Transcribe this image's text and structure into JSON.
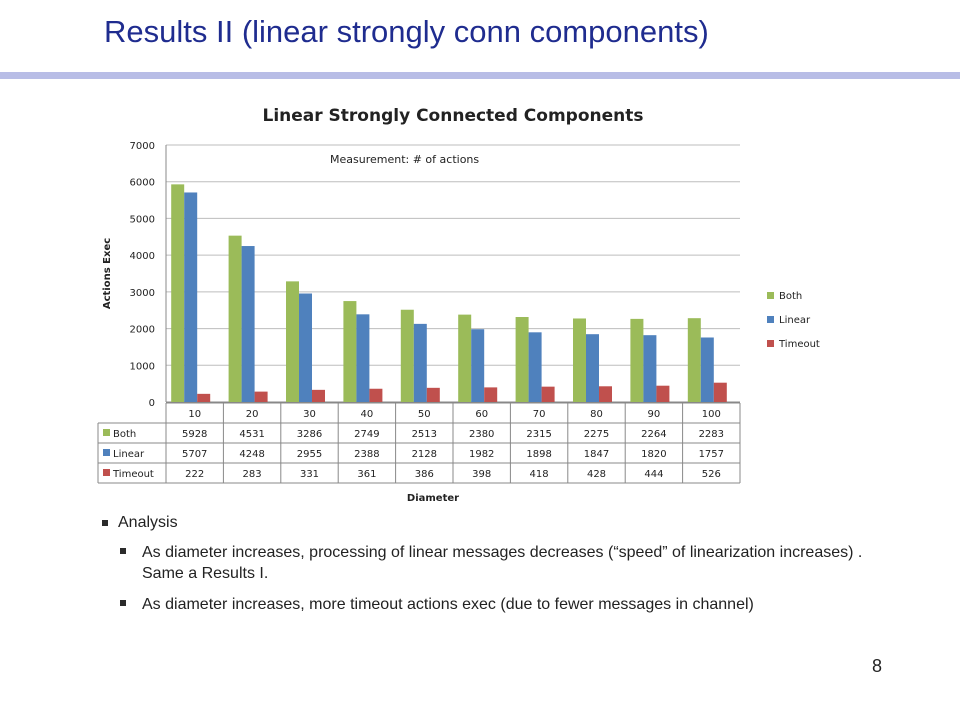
{
  "slide": {
    "title": "Results II (linear strongly conn components)",
    "page_number": "8"
  },
  "bullets": {
    "heading": "Analysis",
    "items": [
      "As diameter increases, processing of linear messages decreases (“speed” of linearization increases) . Same a Results I.",
      "As diameter increases, more timeout actions exec (due to fewer messages in channel)"
    ]
  },
  "chart_data": {
    "type": "bar",
    "title": "Linear Strongly Connected Components",
    "annotation": "Measurement: # of actions",
    "xlabel": "Diameter",
    "ylabel": "Actions Exec",
    "ylim": [
      0,
      7000
    ],
    "yticks": [
      0,
      1000,
      2000,
      3000,
      4000,
      5000,
      6000,
      7000
    ],
    "grid": true,
    "legend_position": "right",
    "categories": [
      "10",
      "20",
      "30",
      "40",
      "50",
      "60",
      "70",
      "80",
      "90",
      "100"
    ],
    "series": [
      {
        "name": "Both",
        "color": "#9bbb59",
        "values": [
          5928,
          4531,
          3286,
          2749,
          2513,
          2380,
          2315,
          2275,
          2264,
          2283
        ]
      },
      {
        "name": "Linear",
        "color": "#4f81bd",
        "values": [
          5707,
          4248,
          2955,
          2388,
          2128,
          1982,
          1898,
          1847,
          1820,
          1757
        ]
      },
      {
        "name": "Timeout",
        "color": "#c0504d",
        "values": [
          222,
          283,
          331,
          361,
          386,
          398,
          418,
          428,
          444,
          526
        ]
      }
    ],
    "data_table": true
  }
}
